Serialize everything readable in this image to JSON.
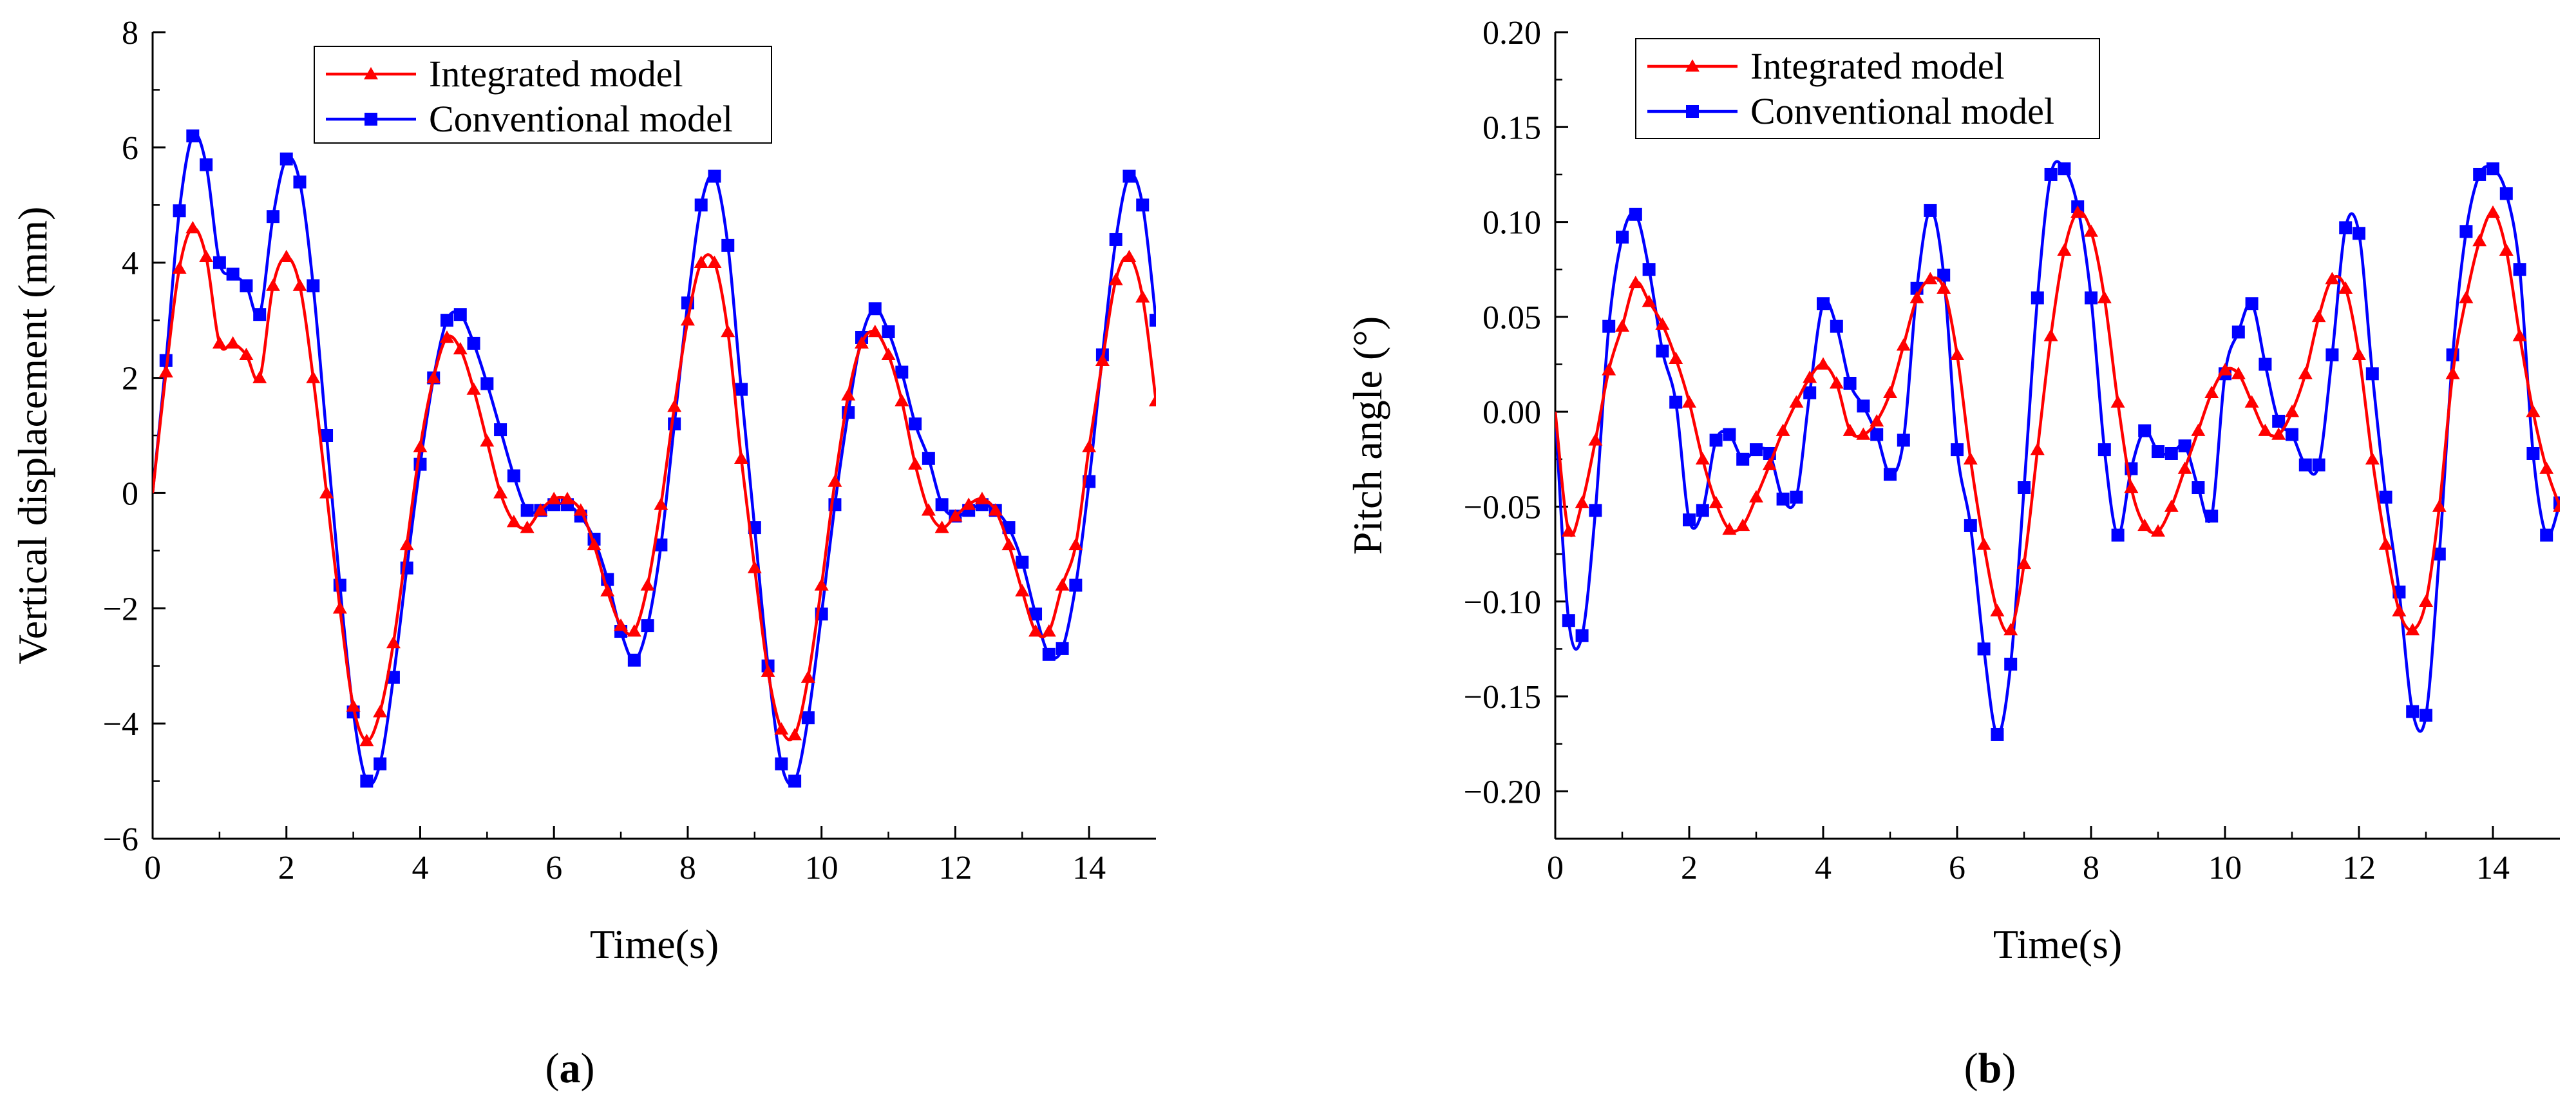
{
  "chart_data": [
    {
      "type": "line",
      "panel_label": "a",
      "xlabel": "Time(s)",
      "ylabel": "Vertical displacement (mm)",
      "xlim": [
        0,
        15
      ],
      "ylim": [
        -6,
        8
      ],
      "xticks": [
        0,
        2,
        4,
        6,
        8,
        10,
        12,
        14
      ],
      "yticks": [
        -6,
        -4,
        -2,
        0,
        2,
        4,
        6,
        8
      ],
      "xtick_labels": [
        "0",
        "2",
        "4",
        "6",
        "8",
        "10",
        "12",
        "14"
      ],
      "ytick_labels": [
        "−6",
        "−4",
        "−2",
        "0",
        "2",
        "4",
        "6",
        "8"
      ],
      "grid": false,
      "legend_position": "top-center",
      "series": [
        {
          "name": "Integrated model",
          "color": "#ff0000",
          "marker": "triangle",
          "x": [
            0,
            0.2,
            0.4,
            0.6,
            0.8,
            1.0,
            1.2,
            1.4,
            1.6,
            1.8,
            2.0,
            2.2,
            2.4,
            2.6,
            2.8,
            3.0,
            3.2,
            3.4,
            3.6,
            3.8,
            4.0,
            4.2,
            4.4,
            4.6,
            4.8,
            5.0,
            5.2,
            5.4,
            5.6,
            5.8,
            6.0,
            6.2,
            6.4,
            6.6,
            6.8,
            7.0,
            7.2,
            7.4,
            7.6,
            7.8,
            8.0,
            8.2,
            8.4,
            8.6,
            8.8,
            9.0,
            9.2,
            9.4,
            9.6,
            9.8,
            10.0,
            10.2,
            10.4,
            10.6,
            10.8,
            11.0,
            11.2,
            11.4,
            11.6,
            11.8,
            12.0,
            12.2,
            12.4,
            12.6,
            12.8,
            13.0,
            13.2,
            13.4,
            13.6,
            13.8,
            14.0,
            14.2,
            14.4,
            14.6,
            14.8,
            15.0
          ],
          "y": [
            0,
            2.1,
            3.9,
            4.6,
            4.1,
            2.6,
            2.6,
            2.4,
            2.0,
            3.6,
            4.1,
            3.6,
            2.0,
            0.0,
            -2.0,
            -3.7,
            -4.3,
            -3.8,
            -2.6,
            -0.9,
            0.8,
            2.0,
            2.7,
            2.5,
            1.8,
            0.9,
            0.0,
            -0.5,
            -0.6,
            -0.3,
            -0.1,
            -0.1,
            -0.3,
            -0.9,
            -1.7,
            -2.3,
            -2.4,
            -1.6,
            -0.2,
            1.5,
            3.0,
            4.0,
            4.0,
            2.8,
            0.6,
            -1.3,
            -3.1,
            -4.1,
            -4.2,
            -3.2,
            -1.6,
            0.2,
            1.7,
            2.6,
            2.8,
            2.4,
            1.6,
            0.5,
            -0.3,
            -0.6,
            -0.4,
            -0.2,
            -0.1,
            -0.3,
            -0.9,
            -1.7,
            -2.4,
            -2.4,
            -1.6,
            -0.9,
            0.8,
            2.3,
            3.7,
            4.1,
            3.4,
            1.6
          ]
        },
        {
          "name": "Conventional model",
          "color": "#0000ff",
          "marker": "square",
          "x": [
            0,
            0.2,
            0.4,
            0.6,
            0.8,
            1.0,
            1.2,
            1.4,
            1.6,
            1.8,
            2.0,
            2.2,
            2.4,
            2.6,
            2.8,
            3.0,
            3.2,
            3.4,
            3.6,
            3.8,
            4.0,
            4.2,
            4.4,
            4.6,
            4.8,
            5.0,
            5.2,
            5.4,
            5.6,
            5.8,
            6.0,
            6.2,
            6.4,
            6.6,
            6.8,
            7.0,
            7.2,
            7.4,
            7.6,
            7.8,
            8.0,
            8.2,
            8.4,
            8.6,
            8.8,
            9.0,
            9.2,
            9.4,
            9.6,
            9.8,
            10.0,
            10.2,
            10.4,
            10.6,
            10.8,
            11.0,
            11.2,
            11.4,
            11.6,
            11.8,
            12.0,
            12.2,
            12.4,
            12.6,
            12.8,
            13.0,
            13.2,
            13.4,
            13.6,
            13.8,
            14.0,
            14.2,
            14.4,
            14.6,
            14.8,
            15.0
          ],
          "y": [
            0,
            2.3,
            4.9,
            6.2,
            5.7,
            4.0,
            3.8,
            3.6,
            3.1,
            4.8,
            5.8,
            5.4,
            3.6,
            1.0,
            -1.6,
            -3.8,
            -5.0,
            -4.7,
            -3.2,
            -1.3,
            0.5,
            2.0,
            3.0,
            3.1,
            2.6,
            1.9,
            1.1,
            0.3,
            -0.3,
            -0.3,
            -0.2,
            -0.2,
            -0.4,
            -0.8,
            -1.5,
            -2.4,
            -2.9,
            -2.3,
            -0.9,
            1.2,
            3.3,
            5.0,
            5.5,
            4.3,
            1.8,
            -0.6,
            -3.0,
            -4.7,
            -5.0,
            -3.9,
            -2.1,
            -0.2,
            1.4,
            2.7,
            3.2,
            2.8,
            2.1,
            1.2,
            0.6,
            -0.2,
            -0.4,
            -0.3,
            -0.2,
            -0.3,
            -0.6,
            -1.2,
            -2.1,
            -2.8,
            -2.7,
            -1.6,
            0.2,
            2.4,
            4.4,
            5.5,
            5.0,
            3.0
          ]
        }
      ]
    },
    {
      "type": "line",
      "panel_label": "b",
      "xlabel": "Time(s)",
      "ylabel": "Pitch angle (°)",
      "xlim": [
        0,
        15
      ],
      "ylim": [
        -0.225,
        0.2
      ],
      "xticks": [
        0,
        2,
        4,
        6,
        8,
        10,
        12,
        14
      ],
      "yticks": [
        -0.2,
        -0.15,
        -0.1,
        -0.05,
        0,
        0.05,
        0.1,
        0.15,
        0.2
      ],
      "xtick_labels": [
        "0",
        "2",
        "4",
        "6",
        "8",
        "10",
        "12",
        "14"
      ],
      "ytick_labels": [
        "−0.20",
        "−0.15",
        "−0.10",
        "−0.05",
        "0.00",
        "0.05",
        "0.10",
        "0.15",
        "0.20"
      ],
      "grid": false,
      "legend_position": "top-left",
      "series": [
        {
          "name": "Integrated model",
          "color": "#ff0000",
          "marker": "triangle",
          "x": [
            0,
            0.2,
            0.4,
            0.6,
            0.8,
            1.0,
            1.2,
            1.4,
            1.6,
            1.8,
            2.0,
            2.2,
            2.4,
            2.6,
            2.8,
            3.0,
            3.2,
            3.4,
            3.6,
            3.8,
            4.0,
            4.2,
            4.4,
            4.6,
            4.8,
            5.0,
            5.2,
            5.4,
            5.6,
            5.8,
            6.0,
            6.2,
            6.4,
            6.6,
            6.8,
            7.0,
            7.2,
            7.4,
            7.6,
            7.8,
            8.0,
            8.2,
            8.4,
            8.6,
            8.8,
            9.0,
            9.2,
            9.4,
            9.6,
            9.8,
            10.0,
            10.2,
            10.4,
            10.6,
            10.8,
            11.0,
            11.2,
            11.4,
            11.6,
            11.8,
            12.0,
            12.2,
            12.4,
            12.6,
            12.8,
            13.0,
            13.2,
            13.4,
            13.6,
            13.8,
            14.0,
            14.2,
            14.4,
            14.6,
            14.8,
            15.0
          ],
          "y": [
            0,
            -0.063,
            -0.048,
            -0.015,
            0.022,
            0.045,
            0.068,
            0.058,
            0.046,
            0.028,
            0.005,
            -0.025,
            -0.048,
            -0.062,
            -0.06,
            -0.045,
            -0.028,
            -0.01,
            0.005,
            0.018,
            0.025,
            0.015,
            -0.01,
            -0.012,
            -0.005,
            0.01,
            0.035,
            0.06,
            0.07,
            0.065,
            0.03,
            -0.025,
            -0.07,
            -0.105,
            -0.115,
            -0.08,
            -0.02,
            0.04,
            0.085,
            0.105,
            0.095,
            0.06,
            0.005,
            -0.04,
            -0.06,
            -0.063,
            -0.05,
            -0.03,
            -0.01,
            0.01,
            0.022,
            0.02,
            0.005,
            -0.01,
            -0.012,
            0.0,
            0.02,
            0.05,
            0.07,
            0.065,
            0.03,
            -0.025,
            -0.07,
            -0.105,
            -0.115,
            -0.1,
            -0.05,
            0.02,
            0.06,
            0.09,
            0.105,
            0.085,
            0.04,
            0.0,
            -0.03,
            -0.05
          ]
        },
        {
          "name": "Conventional model",
          "color": "#0000ff",
          "marker": "square",
          "x": [
            0,
            0.2,
            0.4,
            0.6,
            0.8,
            1.0,
            1.2,
            1.4,
            1.6,
            1.8,
            2.0,
            2.2,
            2.4,
            2.6,
            2.8,
            3.0,
            3.2,
            3.4,
            3.6,
            3.8,
            4.0,
            4.2,
            4.4,
            4.6,
            4.8,
            5.0,
            5.2,
            5.4,
            5.6,
            5.8,
            6.0,
            6.2,
            6.4,
            6.6,
            6.8,
            7.0,
            7.2,
            7.4,
            7.6,
            7.8,
            8.0,
            8.2,
            8.4,
            8.6,
            8.8,
            9.0,
            9.2,
            9.4,
            9.6,
            9.8,
            10.0,
            10.2,
            10.4,
            10.6,
            10.8,
            11.0,
            11.2,
            11.4,
            11.6,
            11.8,
            12.0,
            12.2,
            12.4,
            12.6,
            12.8,
            13.0,
            13.2,
            13.4,
            13.6,
            13.8,
            14.0,
            14.2,
            14.4,
            14.6,
            14.8,
            15.0
          ],
          "y": [
            0,
            -0.11,
            -0.118,
            -0.052,
            0.045,
            0.092,
            0.104,
            0.075,
            0.032,
            0.005,
            -0.057,
            -0.052,
            -0.015,
            -0.012,
            -0.025,
            -0.02,
            -0.022,
            -0.046,
            -0.045,
            0.01,
            0.057,
            0.045,
            0.015,
            0.003,
            -0.012,
            -0.033,
            -0.015,
            0.065,
            0.106,
            0.072,
            -0.02,
            -0.06,
            -0.125,
            -0.17,
            -0.133,
            -0.04,
            0.06,
            0.125,
            0.128,
            0.108,
            0.06,
            -0.02,
            -0.065,
            -0.03,
            -0.01,
            -0.021,
            -0.022,
            -0.018,
            -0.04,
            -0.055,
            0.02,
            0.042,
            0.057,
            0.025,
            -0.005,
            -0.012,
            -0.028,
            -0.028,
            0.03,
            0.097,
            0.094,
            0.02,
            -0.045,
            -0.095,
            -0.158,
            -0.16,
            -0.075,
            0.03,
            0.095,
            0.125,
            0.128,
            0.115,
            0.075,
            -0.022,
            -0.065,
            -0.048
          ]
        }
      ]
    }
  ]
}
